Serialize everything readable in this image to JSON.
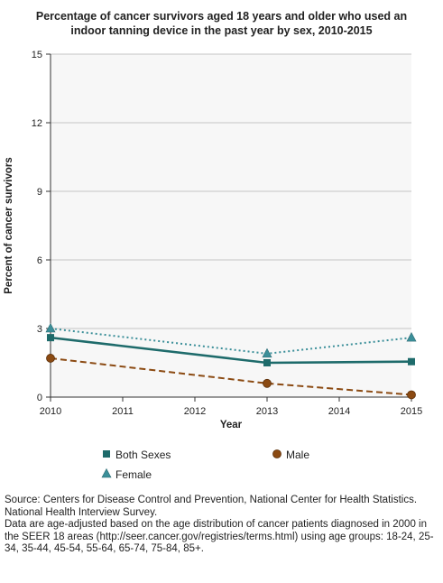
{
  "chart_data": {
    "type": "line",
    "title": "Percentage of cancer survivors aged 18 years and older who used an indoor tanning device in the past year by sex, 2010-2015",
    "xlabel": "Year",
    "ylabel": "Percent of cancer survivors",
    "x_ticks": [
      "2010",
      "2011",
      "2012",
      "2013",
      "2014",
      "2015"
    ],
    "y_ticks": [
      "0",
      "3",
      "6",
      "9",
      "12",
      "15"
    ],
    "ylim": [
      0,
      15
    ],
    "xlim": [
      2010,
      2015
    ],
    "grid": "horizontal",
    "legend_position": "bottom",
    "series": [
      {
        "name": "Both Sexes",
        "color": "#1e6b6b",
        "line": "solid",
        "marker": "square",
        "x": [
          2010,
          2013,
          2015
        ],
        "values": [
          2.6,
          1.5,
          1.55
        ]
      },
      {
        "name": "Male",
        "color": "#8b4a12",
        "line": "dashed",
        "marker": "circle",
        "x": [
          2010,
          2013,
          2015
        ],
        "values": [
          1.7,
          0.6,
          0.1
        ]
      },
      {
        "name": "Female",
        "color": "#3b8f99",
        "line": "dotted",
        "marker": "triangle",
        "x": [
          2010,
          2013,
          2015
        ],
        "values": [
          3.0,
          1.9,
          2.6
        ]
      }
    ]
  },
  "footnote": {
    "source": "Source: Centers for Disease Control and Prevention, National Center for Health Statistics. National Health Interview Survey.",
    "note": "Data are age-adjusted based on the age distribution of cancer patients diagnosed in 2000 in the SEER 18 areas (http://seer.cancer.gov/registries/terms.html) using age groups: 18-24, 25-34, 35-44, 45-54, 55-64, 65-74, 75-84, 85+."
  }
}
